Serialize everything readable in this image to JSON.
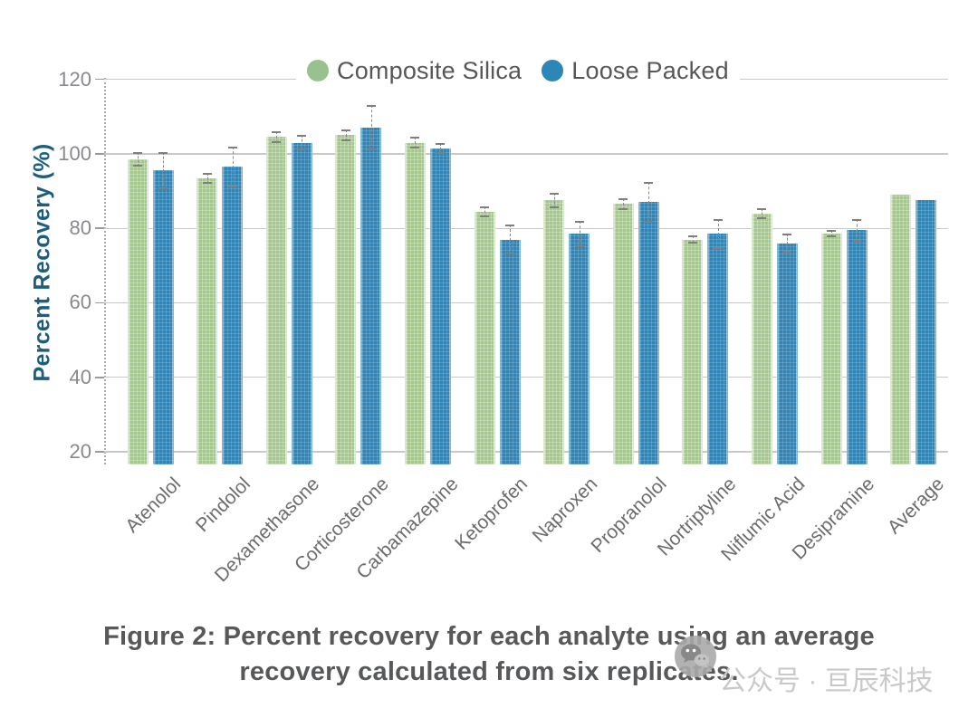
{
  "chart_data": {
    "type": "bar",
    "title": "",
    "ylabel": "Percent Recovery (%)",
    "xlabel": "",
    "categories": [
      "Atenolol",
      "Pindolol",
      "Dexamethasone",
      "Corticosterone",
      "Carbamazepine",
      "Ketoprofen",
      "Naproxen",
      "Propranolol",
      "Nortriptyline",
      "Niflumic Acid",
      "Desipramine",
      "Average"
    ],
    "series": [
      {
        "name": "Composite Silica",
        "color": "#a3c88b",
        "values": [
          98.5,
          93.5,
          104.5,
          105,
          103,
          84.5,
          87.5,
          86.5,
          77,
          84,
          78.5,
          89
        ],
        "errors": [
          2,
          1.5,
          1.5,
          1.5,
          1.5,
          1.5,
          2,
          1.5,
          1,
          1.5,
          1,
          0
        ]
      },
      {
        "name": "Loose Packed",
        "color": "#2e85b7",
        "values": [
          95.5,
          96.5,
          103,
          107,
          101.5,
          77,
          78.5,
          87,
          78.5,
          76,
          79.5,
          87.5
        ],
        "errors": [
          5,
          5.5,
          2,
          6,
          1.5,
          4,
          3.5,
          5.5,
          4,
          2.5,
          3,
          0
        ]
      }
    ],
    "yticks": [
      20,
      40,
      60,
      80,
      100,
      120
    ],
    "ylim": [
      16.6,
      120.4
    ],
    "grid": true,
    "error_bars": true,
    "legend_position": "top"
  },
  "legend": {
    "items": [
      {
        "label": "Composite Silica",
        "color": "#99c08f"
      },
      {
        "label": "Loose Packed",
        "color": "#2d87b6"
      }
    ]
  },
  "caption": {
    "line1": "Figure 2: Percent recovery for each analyte using an average",
    "line2": "recovery calculated from six replicates."
  },
  "watermark": {
    "text": "公众号 · 亘辰科技",
    "icon": "wechat-icon"
  },
  "colors": {
    "grid": "#c9c9c9",
    "axis_title": "#1d5e7f",
    "tick_label": "#87898c",
    "category_label": "#6a6c6e",
    "caption_text": "#57585a",
    "watermark_text": "#c9c9c9",
    "error_bar": "#7f7f7f"
  }
}
